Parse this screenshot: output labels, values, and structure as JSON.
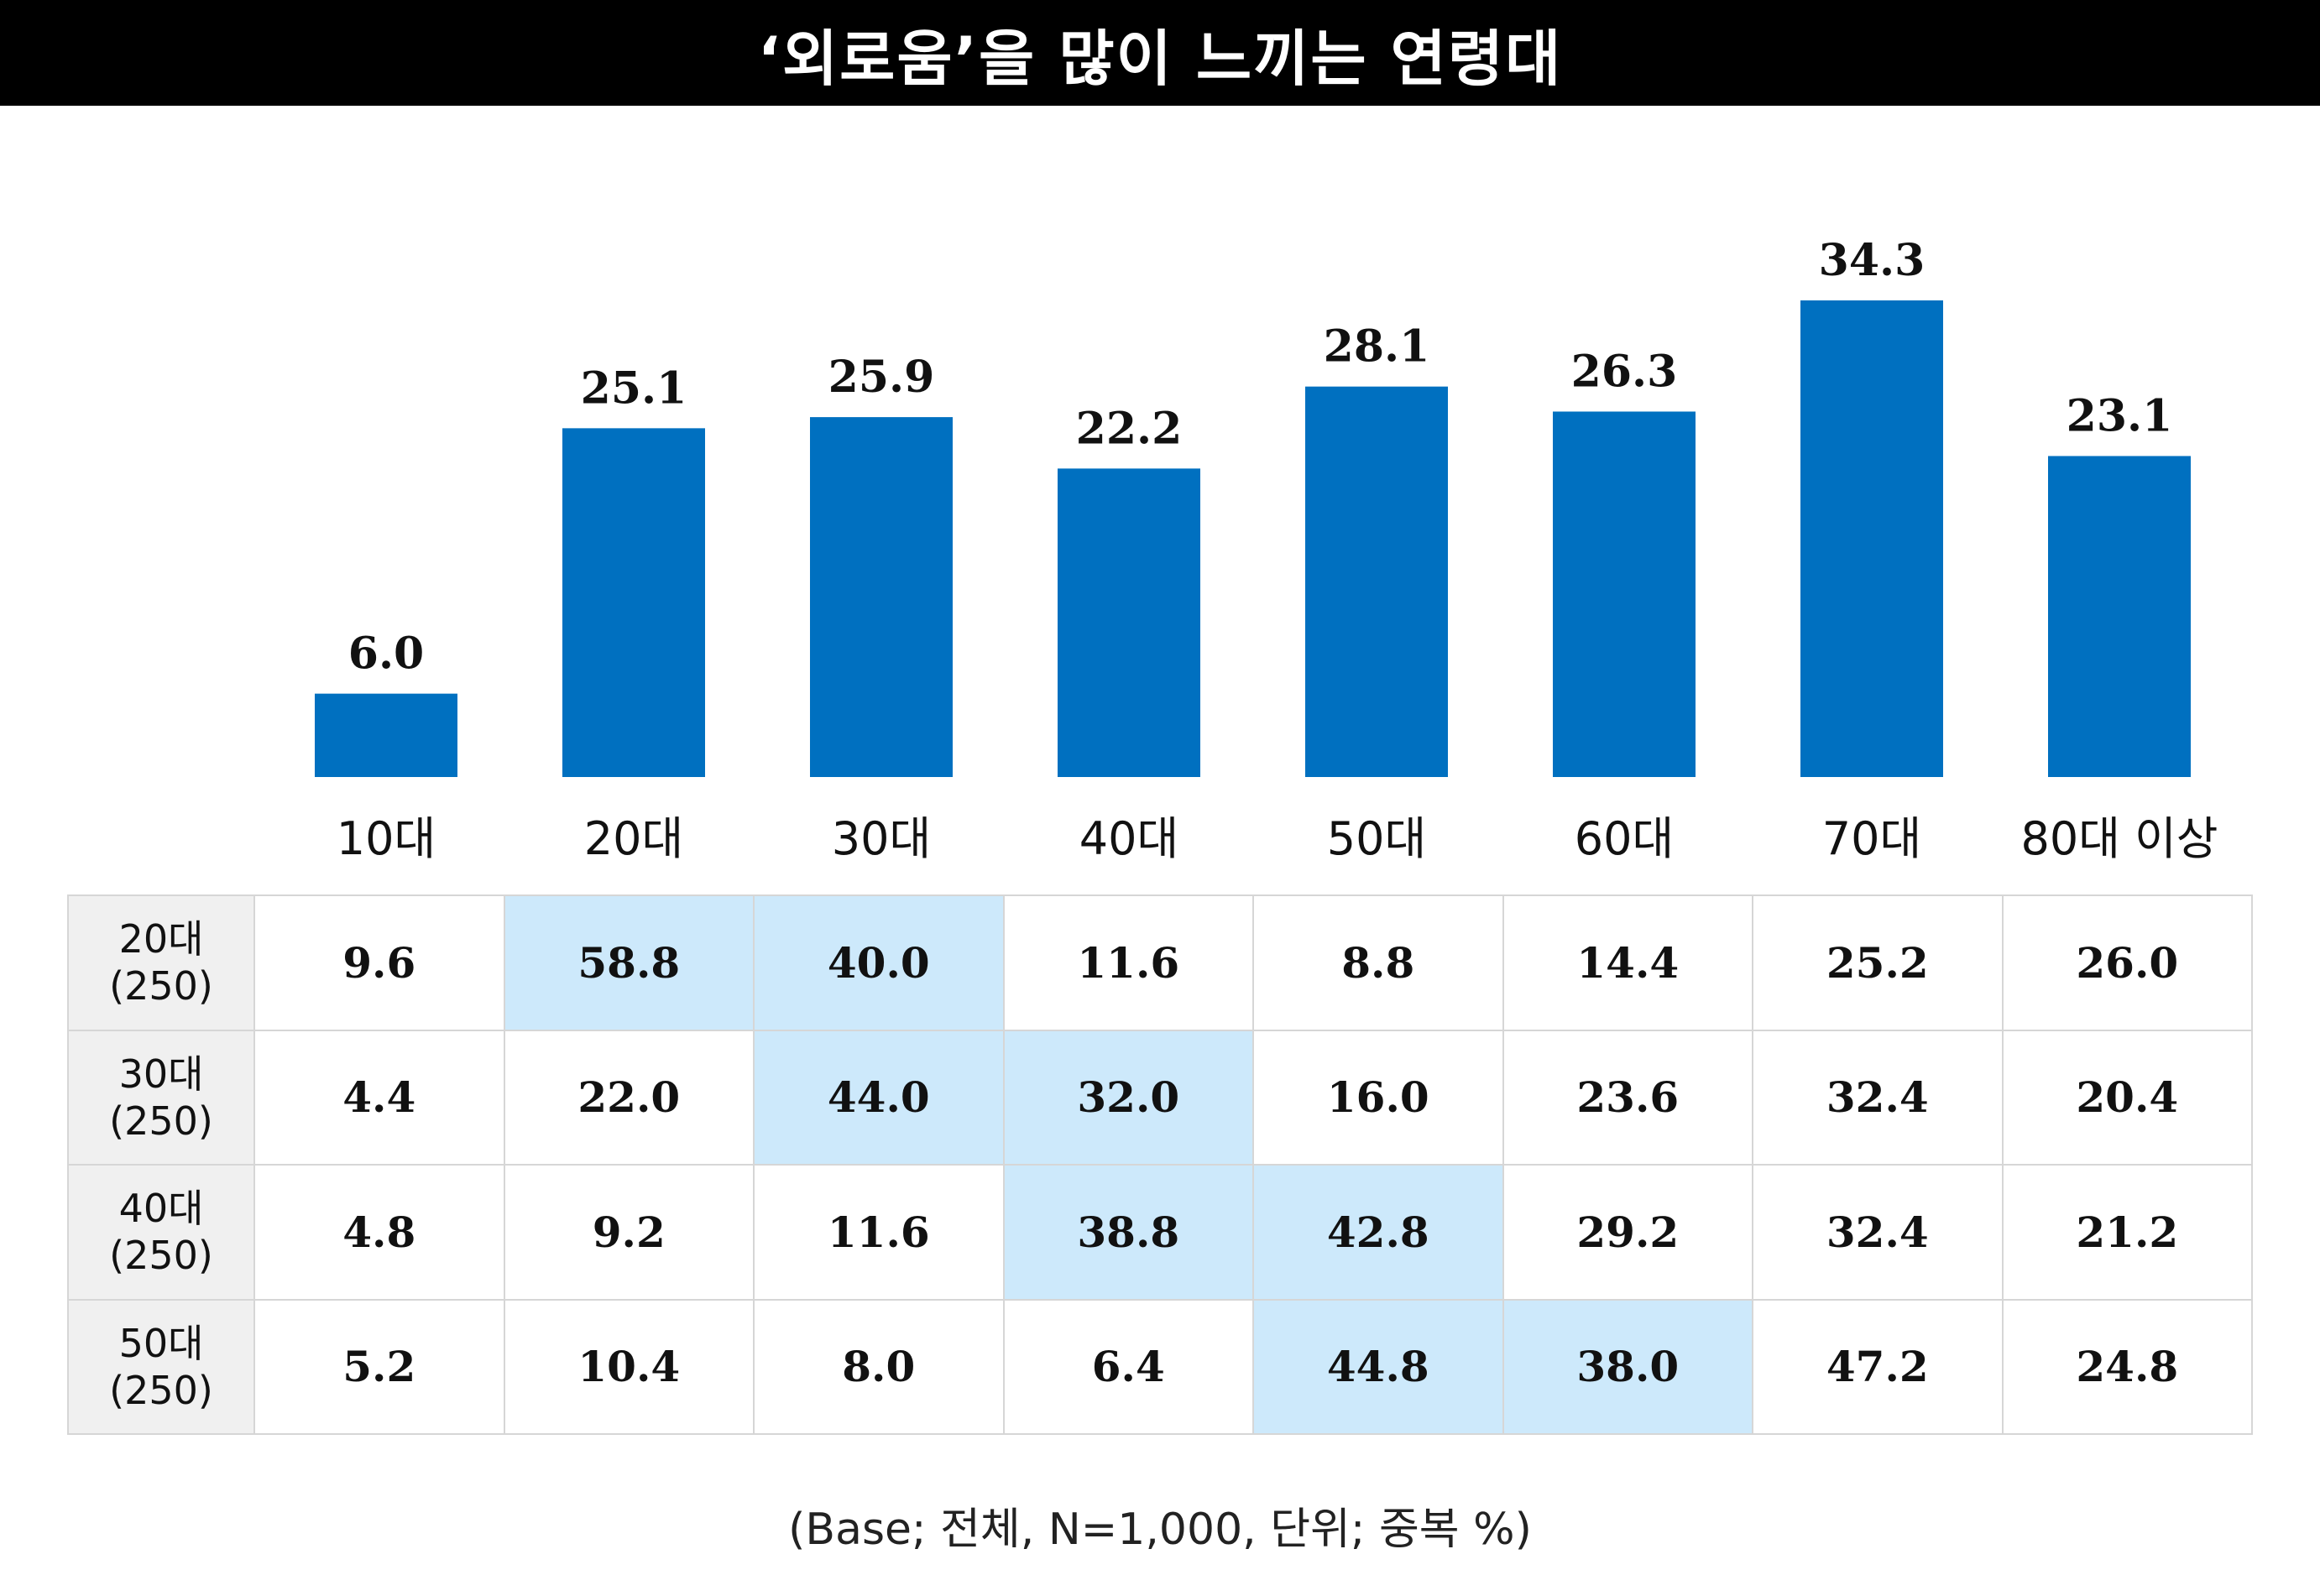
{
  "chart_data": {
    "type": "bar",
    "title": "‘외로움’을 많이 느끼는 연령대",
    "categories": [
      "10대",
      "20대",
      "30대",
      "40대",
      "50대",
      "60대",
      "70대",
      "80대 이상"
    ],
    "values": [
      6.0,
      25.1,
      25.9,
      22.2,
      28.1,
      26.3,
      34.3,
      23.1
    ],
    "value_labels": [
      "6.0",
      "25.1",
      "25.9",
      "22.2",
      "28.1",
      "26.3",
      "34.3",
      "23.1"
    ],
    "ylim": [
      0,
      40
    ],
    "grid": false,
    "bar_color": "#0070c0"
  },
  "table": {
    "highlight_color": "#cde9fb",
    "rows": [
      {
        "label": "20대",
        "base": "(250)",
        "values": [
          "9.6",
          "58.8",
          "40.0",
          "11.6",
          "8.8",
          "14.4",
          "25.2",
          "26.0"
        ],
        "highlight": [
          1,
          2
        ]
      },
      {
        "label": "30대",
        "base": "(250)",
        "values": [
          "4.4",
          "22.0",
          "44.0",
          "32.0",
          "16.0",
          "23.6",
          "32.4",
          "20.4"
        ],
        "highlight": [
          2,
          3
        ]
      },
      {
        "label": "40대",
        "base": "(250)",
        "values": [
          "4.8",
          "9.2",
          "11.6",
          "38.8",
          "42.8",
          "29.2",
          "32.4",
          "21.2"
        ],
        "highlight": [
          3,
          4
        ]
      },
      {
        "label": "50대",
        "base": "(250)",
        "values": [
          "5.2",
          "10.4",
          "8.0",
          "6.4",
          "44.8",
          "38.0",
          "47.2",
          "24.8"
        ],
        "highlight": [
          4,
          5
        ]
      }
    ]
  },
  "footnote": "(Base; 전체, N=1,000, 단위; 중복 %)"
}
